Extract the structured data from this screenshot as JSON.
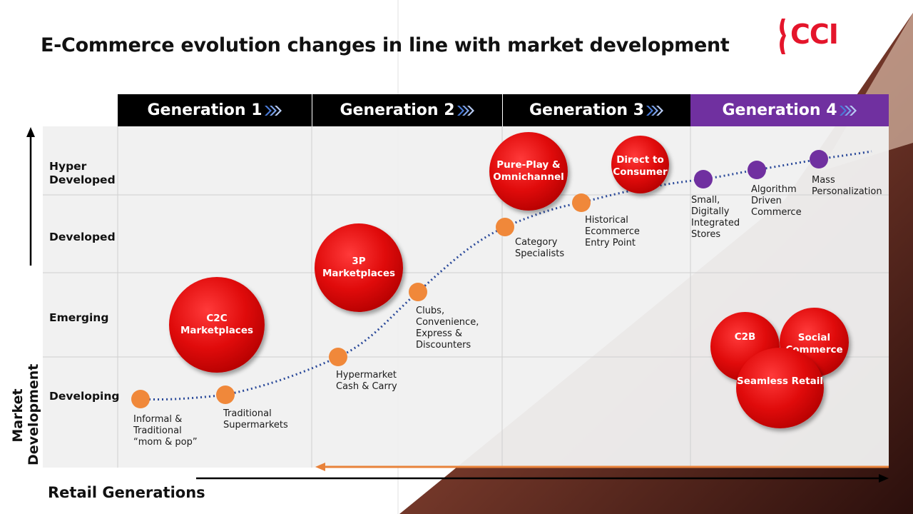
{
  "title": "E-Commerce evolution changes in line with market development",
  "logo": {
    "text": "CCI",
    "brand_color": "#e4152b"
  },
  "generations": [
    {
      "label": "Generation 1",
      "bg": "#000000"
    },
    {
      "label": "Generation 2",
      "bg": "#000000"
    },
    {
      "label": "Generation 3",
      "bg": "#000000"
    },
    {
      "label": "Generation 4",
      "bg": "#7030a0"
    }
  ],
  "rows": [
    "Hyper\nDeveloped",
    "Developed",
    "Emerging",
    "Developing"
  ],
  "axes": {
    "y": "Market\nDevelopment",
    "x": "Retail Generations"
  },
  "dots": [
    {
      "label": "Informal &\nTraditional\n“mom & pop”",
      "color": "#f0883a"
    },
    {
      "label": "Traditional\nSupermarkets",
      "color": "#f0883a"
    },
    {
      "label": "Hypermarket\nCash & Carry",
      "color": "#f0883a"
    },
    {
      "label": "Clubs,\nConvenience,\nExpress &\nDiscounters",
      "color": "#f0883a"
    },
    {
      "label": "Category\nSpecialists",
      "color": "#f0883a"
    },
    {
      "label": "Historical\nEcommerce\nEntry Point",
      "color": "#f0883a"
    },
    {
      "label": "Small,\nDigitally\nIntegrated\nStores",
      "color": "#7030a0"
    },
    {
      "label": "Algorithm\nDriven\nCommerce",
      "color": "#7030a0"
    },
    {
      "label": "Mass\nPersonalization",
      "color": "#7030a0"
    }
  ],
  "bubbles": [
    {
      "label": "C2C\nMarketplaces"
    },
    {
      "label": "3P\nMarketplaces"
    },
    {
      "label": "Pure-Play &\nOmnichannel"
    },
    {
      "label": "Direct to\nConsumer"
    },
    {
      "label": "C2B"
    },
    {
      "label": "Social\nCommerce"
    },
    {
      "label": "Seamless Retail"
    }
  ],
  "colors": {
    "curve": "#2b4a9a",
    "grid_bg": "#f0f0f0",
    "orange_arrow": "#e8823a"
  }
}
